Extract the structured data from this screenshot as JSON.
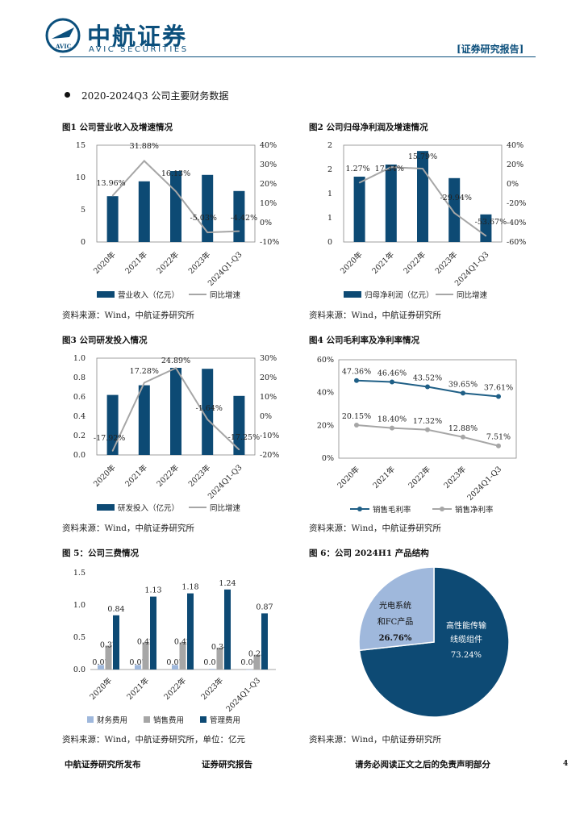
{
  "header": {
    "logo_cn": "中航证券",
    "logo_en": "AVIC SECURITIES",
    "logo_badge": "AVIC",
    "report_tag": "[证券研究报告]"
  },
  "section": {
    "title": "2020-2024Q3 公司主要财务数据"
  },
  "figures": [
    {
      "title": "图1 公司营业收入及增速情况",
      "source": "资料来源：Wind，中航证券研究所"
    },
    {
      "title": "图2 公司归母净利润及增速情况",
      "source": "资料来源：Wind，中航证券研究所"
    },
    {
      "title": "图3 公司研发投入情况",
      "source": "资料来源：Wind，中航证券研究所"
    },
    {
      "title": "图4 公司毛利率及净利率情况",
      "source": "资料来源：Wind，中航证券研究所"
    },
    {
      "title": "图 5：公司三费情况",
      "source": "资料来源：Wind，中航证券研究所，单位：亿元"
    },
    {
      "title": "图 6：公司 2024H1 产品结构",
      "source": "资料来源：Wind，中航证券研究所"
    }
  ],
  "footer": {
    "left": "中航证券研究所发布",
    "center": "证券研究报告",
    "right": "请务必阅读正文之后的免责声明部分",
    "page": "4"
  },
  "colors": {
    "navy": "#0d4a74",
    "gray": "#a6a6a6",
    "lightblue": "#9fb8dc",
    "teal": "#1f5f86"
  },
  "chart_data": [
    {
      "type": "bar",
      "title": "图1 公司营业收入及增速情况",
      "categories": [
        "2020年",
        "2021年",
        "2022年",
        "2023年",
        "2024Q1-Q3"
      ],
      "series": [
        {
          "name": "营业收入（亿元）",
          "axis": "left",
          "kind": "bar",
          "values": [
            7.1,
            9.4,
            11.0,
            10.4,
            7.9
          ]
        },
        {
          "name": "同比增速",
          "axis": "right",
          "kind": "line",
          "values": [
            13.96,
            31.88,
            16.13,
            -5.03,
            -4.42
          ]
        }
      ],
      "data_labels": [
        "13.96%",
        "31.88%",
        "16.13%",
        "-5.03%",
        "-4.42%"
      ],
      "y_left": {
        "min": 0,
        "max": 15,
        "ticks": [
          "0",
          "5",
          "10",
          "15"
        ]
      },
      "y_right": {
        "min": -10,
        "max": 40,
        "ticks": [
          "-10%",
          "0%",
          "10%",
          "20%",
          "30%",
          "40%"
        ]
      }
    },
    {
      "type": "bar",
      "title": "图2 公司归母净利润及增速情况",
      "categories": [
        "2020年",
        "2021年",
        "2022年",
        "2023年",
        "2024Q1-Q3"
      ],
      "series": [
        {
          "name": "归母净利润（亿元）",
          "axis": "left",
          "kind": "bar",
          "values": [
            1.35,
            1.6,
            1.88,
            1.32,
            0.57
          ]
        },
        {
          "name": "同比增速",
          "axis": "right",
          "kind": "line",
          "values": [
            1.27,
            17.34,
            15.79,
            -29.94,
            -53.67
          ]
        }
      ],
      "data_labels": [
        "1.27%",
        "17.34%",
        "15.79%",
        "-29.94%",
        "-53.67%"
      ],
      "y_left": {
        "min": 0,
        "max": 2,
        "ticks": [
          "0",
          "1",
          "1",
          "2",
          "2"
        ]
      },
      "y_right": {
        "min": -60,
        "max": 40,
        "ticks": [
          "-60%",
          "-40%",
          "-20%",
          "0%",
          "20%",
          "40%"
        ]
      }
    },
    {
      "type": "bar",
      "title": "图3 公司研发投入情况",
      "categories": [
        "2020年",
        "2021年",
        "2022年",
        "2023年",
        "2024Q1-Q3"
      ],
      "series": [
        {
          "name": "研发投入（亿元）",
          "axis": "left",
          "kind": "bar",
          "values": [
            0.62,
            0.72,
            0.9,
            0.89,
            0.61
          ]
        },
        {
          "name": "同比增速",
          "axis": "right",
          "kind": "line",
          "values": [
            -17.92,
            17.28,
            24.89,
            -1.64,
            -17.25
          ]
        }
      ],
      "data_labels": [
        "-17.92%",
        "17.28%",
        "24.89%",
        "-1.64%",
        "-17.25%"
      ],
      "y_left": {
        "min": 0,
        "max": 1.0,
        "ticks": [
          "0.0",
          "0.2",
          "0.4",
          "0.6",
          "0.8",
          "1.0"
        ]
      },
      "y_right": {
        "min": -20,
        "max": 30,
        "ticks": [
          "-20%",
          "-10%",
          "0%",
          "10%",
          "20%",
          "30%"
        ]
      }
    },
    {
      "type": "line",
      "title": "图4 公司毛利率及净利率情况",
      "categories": [
        "2020年",
        "2021年",
        "2022年",
        "2023年",
        "2024Q1-Q3"
      ],
      "series": [
        {
          "name": "销售毛利率",
          "values": [
            47.36,
            46.46,
            43.52,
            39.65,
            37.61
          ],
          "labels": [
            "47.36%",
            "46.46%",
            "43.52%",
            "39.65%",
            "37.61%"
          ]
        },
        {
          "name": "销售净利率",
          "values": [
            20.15,
            18.4,
            17.32,
            12.88,
            7.51
          ],
          "labels": [
            "20.15%",
            "18.40%",
            "17.32%",
            "12.88%",
            "7.51%"
          ]
        }
      ],
      "y": {
        "min": 0,
        "max": 60,
        "ticks": [
          "0%",
          "20%",
          "40%",
          "60%"
        ]
      }
    },
    {
      "type": "bar",
      "title": "图 5：公司三费情况",
      "categories": [
        "2020年",
        "2021年",
        "2022年",
        "2023年",
        "2024Q1-Q3"
      ],
      "series": [
        {
          "name": "财务费用",
          "values": [
            0.07,
            0.07,
            0.07,
            0.01,
            0.0
          ],
          "labels": [
            "0.07",
            "0.07",
            "0.07",
            "0.01",
            "0.00"
          ]
        },
        {
          "name": "销售费用",
          "values": [
            0.37,
            0.42,
            0.42,
            0.34,
            0.23
          ],
          "labels": [
            "0.37",
            "0.42",
            "0.42",
            "0.34",
            "0.23"
          ]
        },
        {
          "name": "管理费用",
          "values": [
            0.84,
            1.13,
            1.18,
            1.24,
            0.87
          ],
          "labels": [
            "0.84",
            "1.13",
            "1.18",
            "1.24",
            "0.87"
          ]
        }
      ],
      "y": {
        "min": 0,
        "max": 1.5,
        "ticks": [
          "0.0",
          "0.5",
          "1.0",
          "1.5"
        ]
      }
    },
    {
      "type": "pie",
      "title": "图 6：公司 2024H1 产品结构",
      "slices": [
        {
          "name": "高性能传输线缆组件",
          "value": 73.24,
          "label_lines": [
            "高性能传输",
            "线缆组件",
            "73.24%"
          ]
        },
        {
          "name": "光电系统和FC产品",
          "value": 26.76,
          "label_lines": [
            "光电系统",
            "和FC产品",
            "26.76%"
          ]
        }
      ]
    }
  ]
}
